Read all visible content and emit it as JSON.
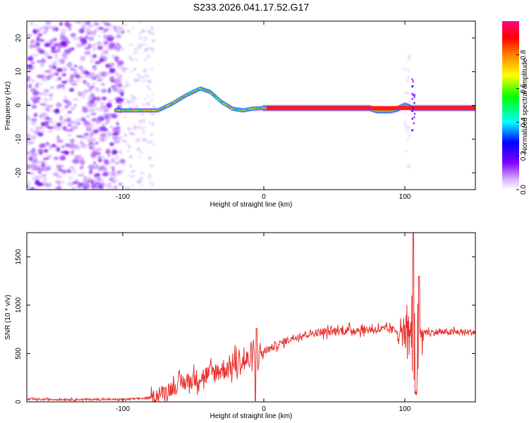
{
  "title": "S233.2026.041.17.52.G17",
  "chart_data": [
    {
      "type": "heatmap",
      "name": "spectrogram",
      "xlabel": "Height of straight line (km)",
      "ylabel": "Frequency (Hz)",
      "xlim": [
        -168,
        150
      ],
      "ylim": [
        -25,
        25
      ],
      "x_ticks": [
        -100,
        0,
        100
      ],
      "y_ticks": [
        -20,
        -10,
        0,
        10,
        20
      ],
      "colorbar": {
        "label": "Normalized spectral amplitude",
        "range": [
          0,
          1
        ],
        "ticks": [
          "0.0",
          "0.2",
          "0.4",
          "0.6",
          "0.8"
        ],
        "colors": [
          "#ffffff",
          "#d9b3ff",
          "#8000ff",
          "#0000ff",
          "#00ffff",
          "#00ff00",
          "#ffff00",
          "#ff8000",
          "#ff0000",
          "#ff0080"
        ]
      },
      "ridge": {
        "x": [
          -105,
          -95,
          -85,
          -75,
          -65,
          -55,
          -45,
          -38,
          -30,
          -22,
          -15,
          -8,
          0,
          20,
          40,
          60,
          75,
          80,
          85,
          90,
          95,
          100,
          105,
          110,
          130,
          150
        ],
        "freq": [
          -1.5,
          -1.5,
          -1.5,
          -1.5,
          0.5,
          3,
          5,
          4,
          1,
          -1,
          -1.5,
          -1,
          -0.8,
          -0.8,
          -0.8,
          -0.8,
          -0.8,
          -1.5,
          -1.5,
          -1.5,
          -1,
          0,
          -0.8,
          -0.8,
          -0.8,
          -0.8
        ]
      }
    },
    {
      "type": "line",
      "name": "snr",
      "xlabel": "Height of straight line (km)",
      "ylabel": "SNR (10 * v/v)",
      "xlim": [
        -168,
        150
      ],
      "ylim": [
        0,
        1750
      ],
      "x_ticks": [
        -100,
        0,
        100
      ],
      "y_ticks": [
        0,
        500,
        1000,
        1500
      ],
      "color": "#e8302e",
      "trend": {
        "x": [
          -168,
          -100,
          -80,
          -70,
          -60,
          -50,
          -40,
          -30,
          -20,
          -10,
          -5,
          0,
          10,
          20,
          30,
          40,
          60,
          80,
          100,
          102,
          150
        ],
        "y": [
          25,
          25,
          40,
          110,
          180,
          230,
          280,
          330,
          390,
          430,
          470,
          520,
          590,
          660,
          700,
          720,
          740,
          750,
          740,
          720,
          720
        ]
      },
      "peaks": [
        {
          "x": 106,
          "y": 1750
        },
        {
          "x": 110,
          "y": 1300
        },
        {
          "x": 108,
          "y": 60
        },
        {
          "x": -5,
          "y": 760
        },
        {
          "x": -6,
          "y": 10
        }
      ]
    }
  ]
}
